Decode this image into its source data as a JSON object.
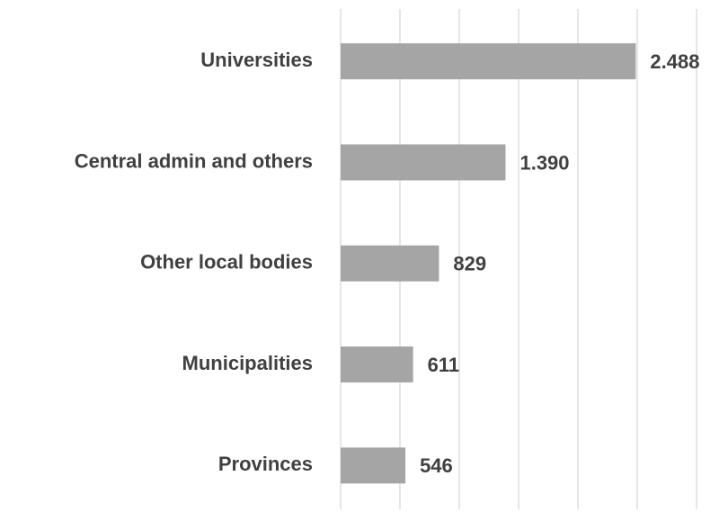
{
  "chart_data": {
    "type": "bar",
    "orientation": "horizontal",
    "categories": [
      "Universities",
      "Central admin and others",
      "Other local bodies",
      "Municipalities",
      "Provinces"
    ],
    "values": [
      2488,
      1390,
      829,
      611,
      546
    ],
    "value_labels": [
      "2.488",
      "1.390",
      "829",
      "611",
      "546"
    ],
    "color": "#a5a5a5",
    "xlim": [
      0,
      3000
    ],
    "xticks": [
      0,
      500,
      1000,
      1500,
      2000,
      2500,
      3000
    ],
    "grid": true
  }
}
